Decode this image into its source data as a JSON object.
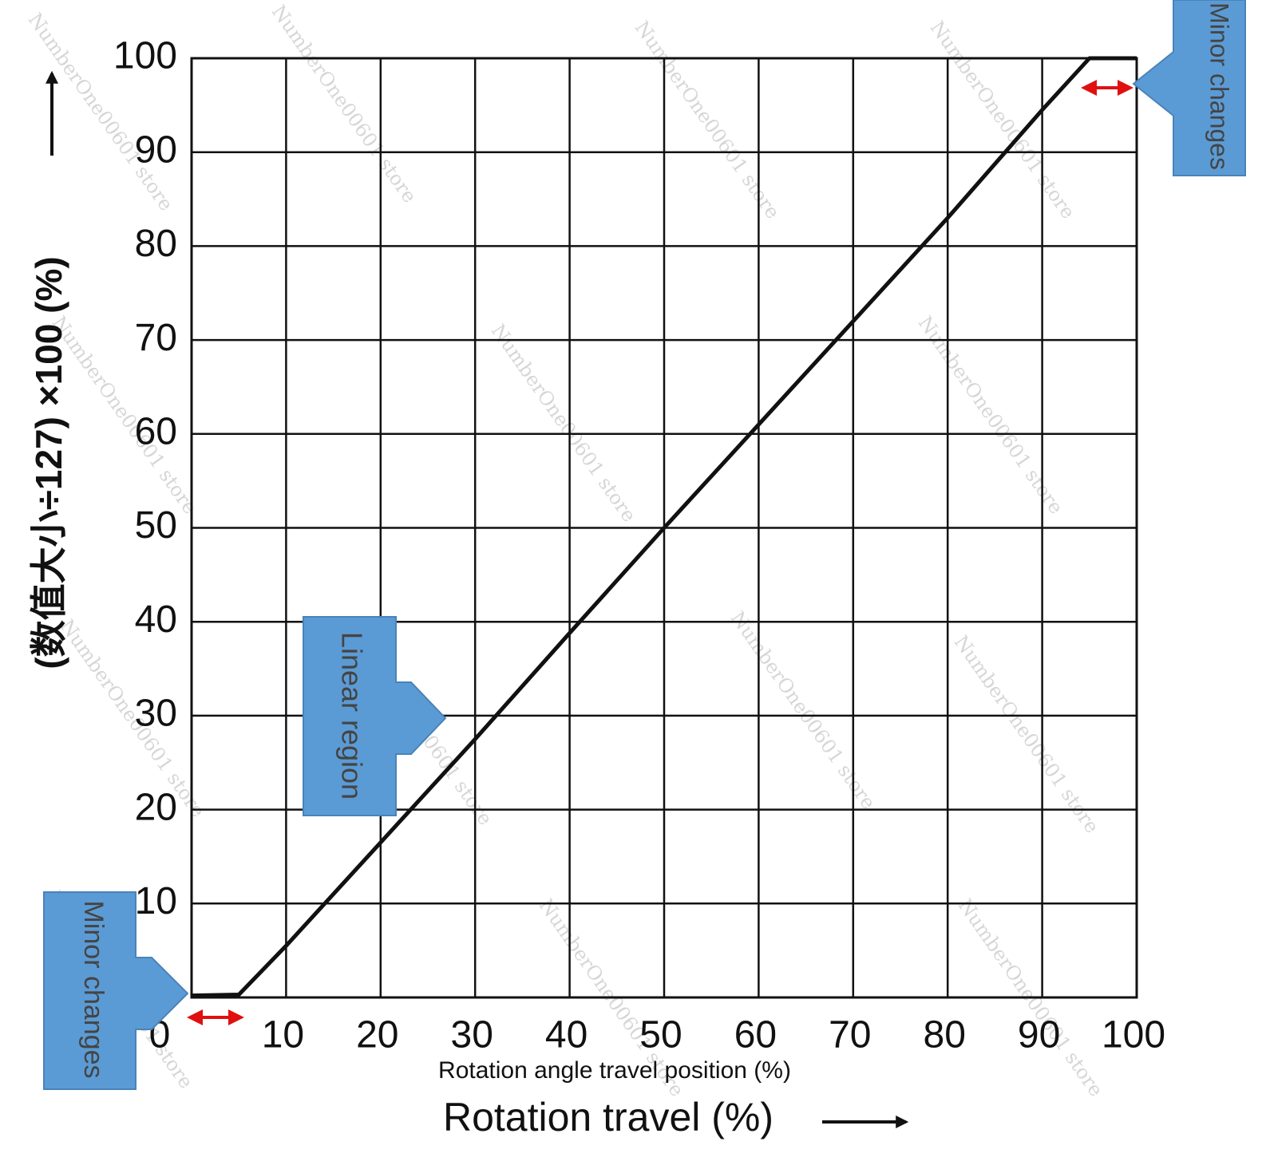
{
  "chart_data": {
    "type": "line",
    "ylabel": "(数值大小÷127) ×100 (%)",
    "xlabel": "Rotation travel (%)",
    "xlabel_secondary": "Rotation angle travel position (%)",
    "x": [
      0,
      5,
      10,
      20,
      30,
      40,
      50,
      60,
      70,
      80,
      90,
      95,
      100
    ],
    "values": [
      0.2,
      0.3,
      5.5,
      16.5,
      27.5,
      38.8,
      50,
      61,
      72,
      83,
      94.5,
      100,
      100
    ],
    "color": "#111111",
    "xlim": [
      0,
      100
    ],
    "xticks": [
      0,
      10,
      20,
      30,
      40,
      50,
      60,
      70,
      80,
      90,
      100
    ],
    "ylim": [
      0,
      100
    ],
    "yticks": [
      10,
      20,
      30,
      40,
      50,
      60,
      70,
      80,
      90,
      100
    ],
    "grid": true,
    "annotations": [
      "Minor changes",
      "Linear region",
      "Minor changes"
    ],
    "watermark": "NumberOne00601 store"
  }
}
